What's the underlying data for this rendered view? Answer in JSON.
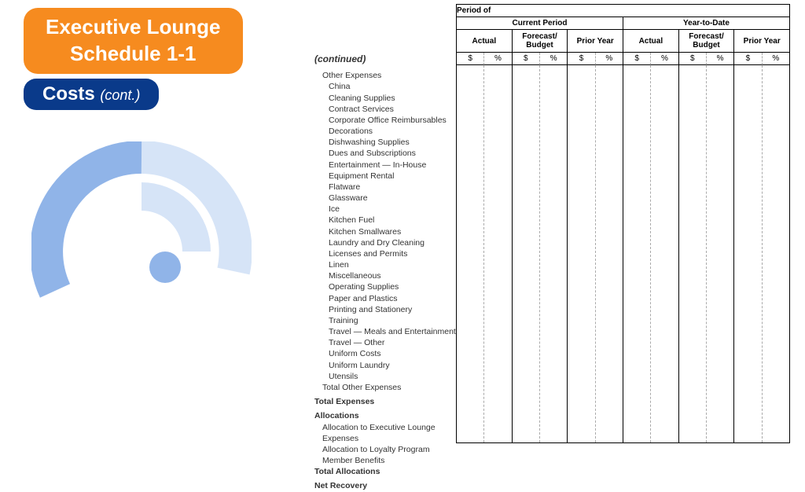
{
  "title": {
    "line1": "Executive Lounge",
    "line2": "Schedule 1-1"
  },
  "subtitle": {
    "main": "Costs",
    "cont": "(cont.)"
  },
  "colors": {
    "title_bg": "#f68b1f",
    "subtitle_bg": "#0a3a8a",
    "arc_light": "#d6e4f7",
    "arc_mid": "#90b4e8",
    "dot": "#90b4e8"
  },
  "continued_label": "(continued)",
  "sections": [
    {
      "label": "Other Expenses",
      "class": "indent1"
    },
    {
      "label": "China",
      "class": "indent2"
    },
    {
      "label": "Cleaning Supplies",
      "class": "indent2"
    },
    {
      "label": "Contract Services",
      "class": "indent2"
    },
    {
      "label": "Corporate Office Reimbursables",
      "class": "indent2"
    },
    {
      "label": "Decorations",
      "class": "indent2"
    },
    {
      "label": "Dishwashing Supplies",
      "class": "indent2"
    },
    {
      "label": "Dues and Subscriptions",
      "class": "indent2"
    },
    {
      "label": "Entertainment — In-House",
      "class": "indent2"
    },
    {
      "label": "Equipment Rental",
      "class": "indent2"
    },
    {
      "label": "Flatware",
      "class": "indent2"
    },
    {
      "label": "Glassware",
      "class": "indent2"
    },
    {
      "label": "Ice",
      "class": "indent2"
    },
    {
      "label": "Kitchen Fuel",
      "class": "indent2"
    },
    {
      "label": "Kitchen Smallwares",
      "class": "indent2"
    },
    {
      "label": "Laundry and Dry Cleaning",
      "class": "indent2"
    },
    {
      "label": "Licenses and Permits",
      "class": "indent2"
    },
    {
      "label": "Linen",
      "class": "indent2"
    },
    {
      "label": "Miscellaneous",
      "class": "indent2"
    },
    {
      "label": "Operating Supplies",
      "class": "indent2"
    },
    {
      "label": "Paper and Plastics",
      "class": "indent2"
    },
    {
      "label": "Printing and Stationery",
      "class": "indent2"
    },
    {
      "label": "Training",
      "class": "indent2"
    },
    {
      "label": "Travel — Meals and Entertainment",
      "class": "indent2"
    },
    {
      "label": "Travel — Other",
      "class": "indent2"
    },
    {
      "label": "Uniform Costs",
      "class": "indent2"
    },
    {
      "label": "Uniform Laundry",
      "class": "indent2"
    },
    {
      "label": "Utensils",
      "class": "indent2"
    },
    {
      "label": "Total Other Expenses",
      "class": "indent1"
    },
    {
      "label": "Total Expenses",
      "class": "bold section"
    },
    {
      "label": "Allocations",
      "class": "bold section"
    },
    {
      "label": "Allocation to Executive Lounge Expenses",
      "class": "indent1"
    },
    {
      "label": "Allocation to Loyalty Program",
      "class": "indent1"
    },
    {
      "label": "Member Benefits",
      "class": "indent1"
    },
    {
      "label": "Total Allocations",
      "class": "bold"
    },
    {
      "label": "Net Recovery",
      "class": "bold section"
    }
  ],
  "table": {
    "period_of": "Period of",
    "groups": [
      "Current Period",
      "Year-to-Date"
    ],
    "columns": [
      "Actual",
      "Forecast/ Budget",
      "Prior Year"
    ],
    "subcols": [
      "$",
      "%"
    ]
  }
}
